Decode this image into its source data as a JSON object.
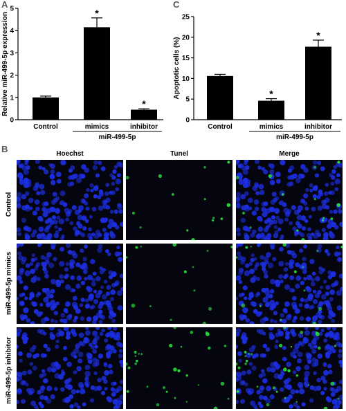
{
  "panels": {
    "a": "A",
    "b": "B",
    "c": "C"
  },
  "chart_data": [
    {
      "type": "bar",
      "panel": "A",
      "categories": [
        "Control",
        "mimics",
        "inhibitor"
      ],
      "values": [
        1.0,
        4.15,
        0.45
      ],
      "errors": [
        0.06,
        0.42,
        0.04
      ],
      "significance": [
        "",
        "*",
        "*"
      ],
      "ylabel": "Relative miR-499-5p expression",
      "group_label": "miR-499-5p",
      "ylim": [
        0,
        5
      ],
      "yticks": [
        0,
        1,
        2,
        3,
        4,
        5
      ],
      "grid": false
    },
    {
      "type": "bar",
      "panel": "C",
      "categories": [
        "Control",
        "mimics",
        "inhibitor"
      ],
      "values": [
        10.6,
        4.6,
        17.7
      ],
      "errors": [
        0.4,
        0.5,
        1.6
      ],
      "significance": [
        "",
        "*",
        "*"
      ],
      "ylabel": "Apoptotic cells (%)",
      "group_label": "miR-499-5p",
      "ylim": [
        0,
        25
      ],
      "yticks": [
        0,
        5,
        10,
        15,
        20,
        25
      ],
      "grid": false
    }
  ],
  "micrographs": {
    "columns": [
      "Hoechst",
      "Tunel",
      "Merge"
    ],
    "rows": [
      "Control",
      "miR-499-5p mimics",
      "miR-499-5p inhibitor"
    ],
    "colors": {
      "hoechst": "#1c2ee0",
      "tunel": "#28e03a",
      "background": "#05050f"
    }
  }
}
